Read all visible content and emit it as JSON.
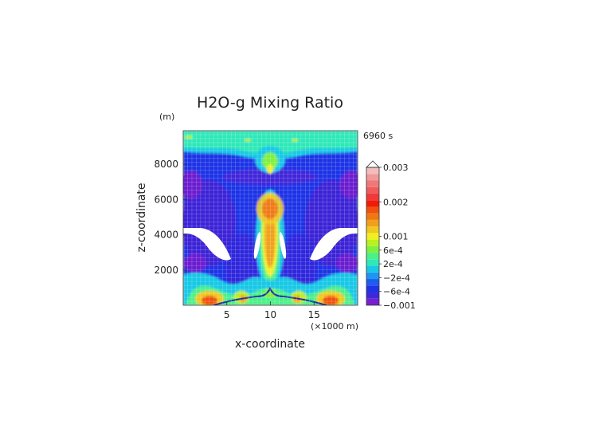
{
  "chart_data": {
    "type": "heatmap",
    "title": "H2O-g Mixing Ratio",
    "time_label": "6960 s",
    "xlabel": "x-coordinate",
    "ylabel": "z-coordinate",
    "x_unit": "(×1000 m)",
    "y_unit": "(m)",
    "xlim": [
      0,
      20
    ],
    "ylim": [
      0,
      9900
    ],
    "x_ticks": [
      5,
      10,
      15
    ],
    "y_ticks": [
      2000,
      4000,
      6000,
      8000
    ],
    "grid": true,
    "colorbar": {
      "tick_labels": [
        "0.003",
        "0.002",
        "0.001",
        "6e-4",
        "2e-4",
        "−2e-4",
        "−6e-4",
        "−0.001"
      ],
      "tick_values": [
        0.003,
        0.002,
        0.001,
        0.0006,
        0.0002,
        -0.0002,
        -0.0006,
        -0.001
      ],
      "levels": [
        -0.001,
        -0.0008,
        -0.0006,
        -0.0004,
        -0.0002,
        0.0,
        0.0002,
        0.0004,
        0.0006,
        0.0008,
        0.001,
        0.0012,
        0.0014,
        0.0016,
        0.0018,
        0.002,
        0.0022,
        0.0024,
        0.0026,
        0.0028,
        0.003
      ],
      "colors": [
        "#7a1fd0",
        "#3a2ad8",
        "#1f32e6",
        "#1e5cf0",
        "#1e96f0",
        "#18c8e6",
        "#2ee8b8",
        "#4cf088",
        "#7ef040",
        "#b8f020",
        "#f0f020",
        "#f0c81e",
        "#f0a01c",
        "#f07814",
        "#f05010",
        "#f01c08",
        "#f03a3a",
        "#f05a5a",
        "#f07878",
        "#f09a9a",
        "#f5bcbc"
      ]
    },
    "colors": {
      "background_field": "#1f32e6",
      "deep_field": "#2418c8",
      "upper_band": "#2ee8b8",
      "core": "#f0c81e",
      "no_data": "#ffffff"
    }
  }
}
